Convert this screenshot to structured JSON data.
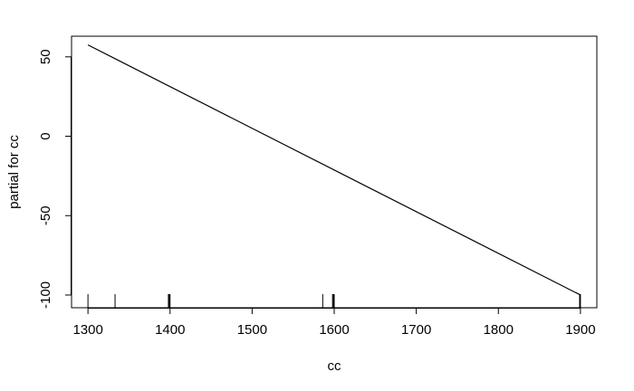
{
  "chart_data": {
    "type": "line",
    "title": "",
    "xlabel": "cc",
    "ylabel": "partial for cc",
    "xlim": [
      1280,
      1920
    ],
    "ylim": [
      -108,
      63
    ],
    "x_ticks": [
      1300,
      1400,
      1500,
      1600,
      1700,
      1800,
      1900
    ],
    "x_tick_labels": [
      "1300",
      "1400",
      "1500",
      "1600",
      "1700",
      "1800",
      "1900"
    ],
    "y_ticks": [
      50,
      0,
      -50,
      -100
    ],
    "y_tick_labels": [
      "50",
      "0",
      "-50",
      "-100"
    ],
    "grid": false,
    "series": [
      {
        "x": [
          1300,
          1900
        ],
        "y": [
          57.5,
          -100
        ]
      }
    ],
    "rug": [
      1300,
      1333,
      1398,
      1399,
      1400,
      1586,
      1598,
      1599,
      1600,
      1899,
      1900
    ]
  }
}
